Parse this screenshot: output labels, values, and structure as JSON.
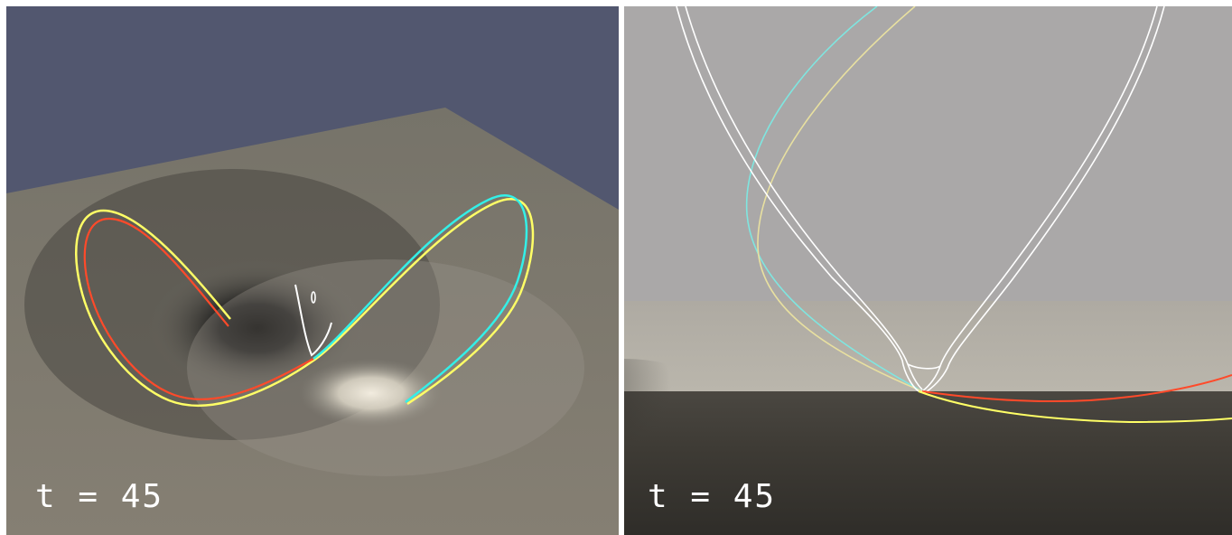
{
  "panels": [
    {
      "id": "oblique-view",
      "time_label": "t = 45"
    },
    {
      "id": "edge-on-view",
      "time_label": "t = 45"
    }
  ],
  "colors": {
    "sky_left": "#52576f",
    "plane_left": "#7a776d",
    "sky_right": "#aaa8a8",
    "plane_right": "#403d37",
    "orbit_red": "#ff4a2a",
    "orbit_yellow": "#ffff66",
    "orbit_cyan": "#33f0e8",
    "orbit_white": "#ffffff"
  }
}
